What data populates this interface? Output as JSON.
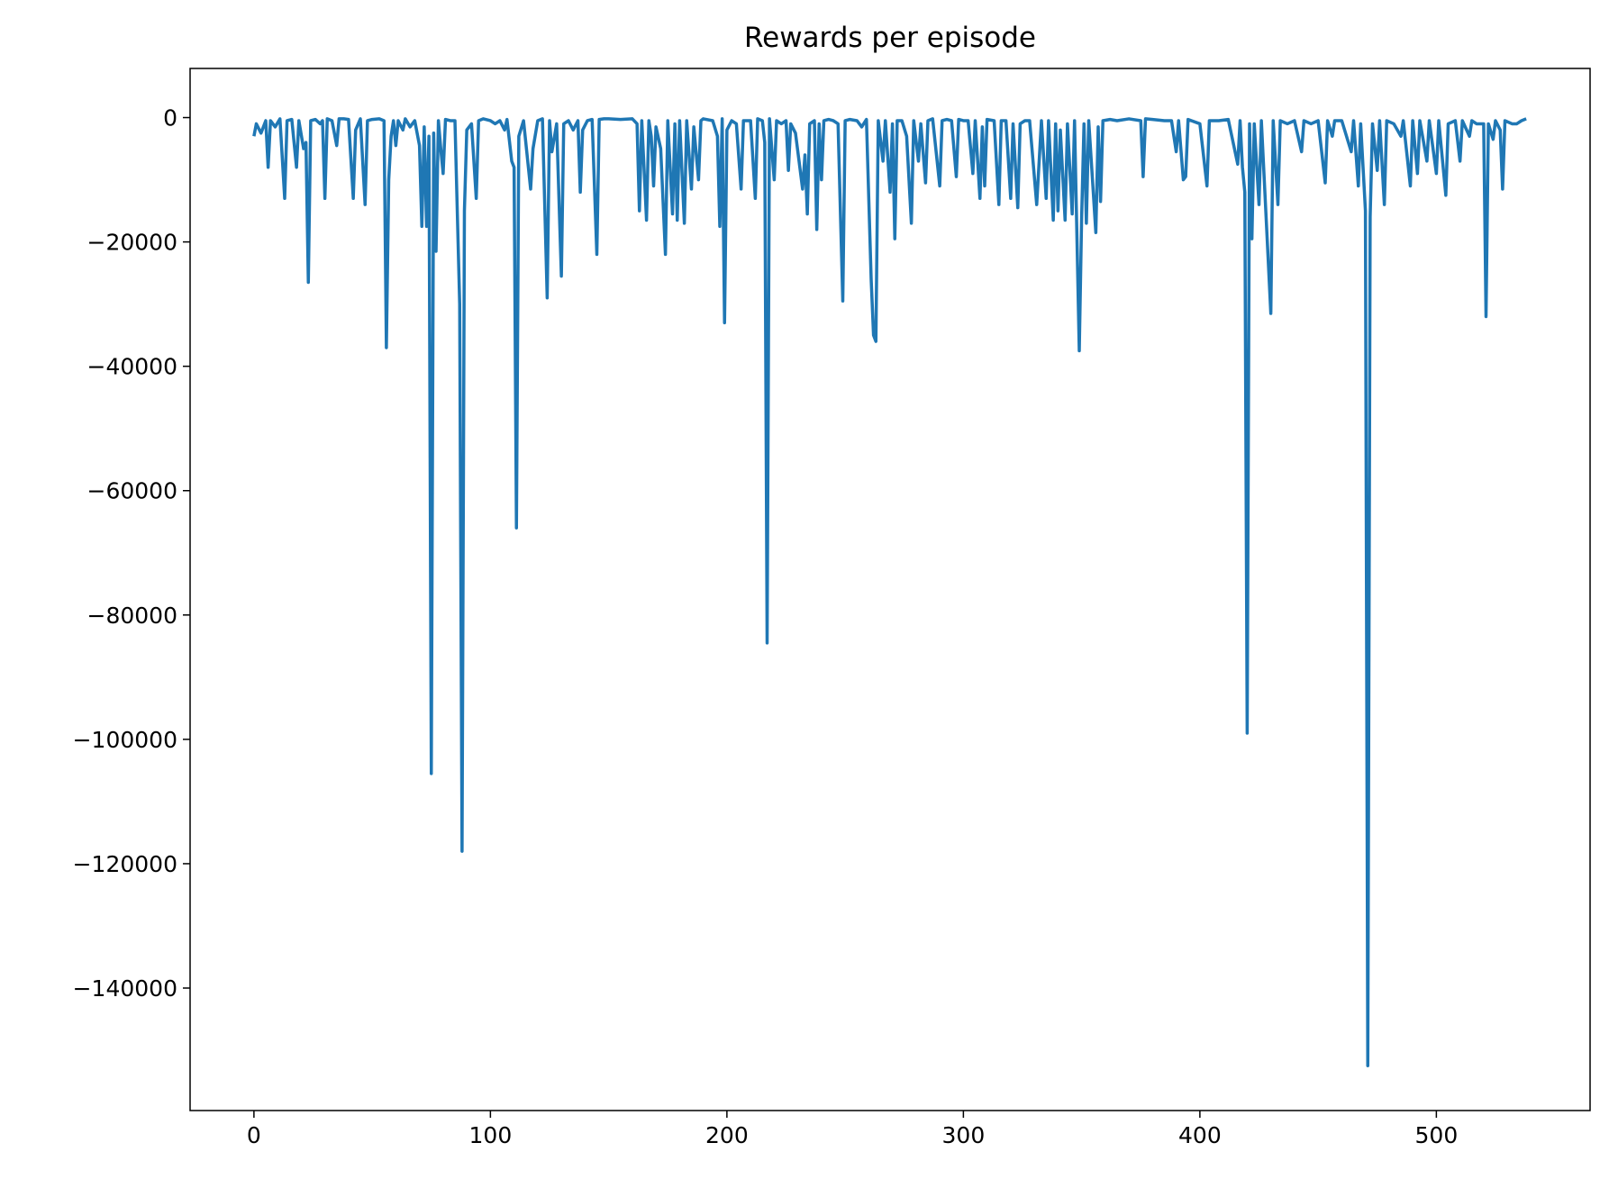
{
  "chart_data": {
    "type": "line",
    "title": "Rewards per episode",
    "xlim": [
      -27,
      565
    ],
    "ylim": [
      -159700,
      7900
    ],
    "xticks": [
      0,
      100,
      200,
      300,
      400,
      500
    ],
    "yticks": [
      0,
      {
        "value": -20000,
        "label": "−20000"
      },
      {
        "value": -40000,
        "label": "−40000"
      },
      {
        "value": -60000,
        "label": "−60000"
      },
      {
        "value": -80000,
        "label": "−80000"
      },
      {
        "value": -100000,
        "label": "−100000"
      },
      {
        "value": -120000,
        "label": "−120000"
      },
      {
        "value": -140000,
        "label": "−140000"
      }
    ],
    "series": [
      {
        "color": "#1f77b4",
        "x": [
          0,
          1,
          3,
          5,
          6,
          7,
          9,
          11,
          13,
          14,
          16,
          18,
          19,
          21,
          22,
          23,
          24,
          26,
          28,
          29,
          30,
          31,
          33,
          35,
          36,
          38,
          40,
          42,
          43,
          45,
          47,
          48,
          50,
          53,
          55,
          56,
          57,
          58,
          59,
          60,
          61,
          63,
          64,
          66,
          68,
          70,
          71,
          72,
          73,
          74,
          75,
          76,
          77,
          78,
          79,
          80,
          81,
          83,
          85,
          87,
          88,
          89,
          90,
          92,
          94,
          95,
          97,
          100,
          102,
          104,
          106,
          107,
          109,
          110,
          111,
          112,
          114,
          117,
          118,
          120,
          122,
          124,
          125,
          126,
          128,
          130,
          131,
          133,
          135,
          137,
          138,
          139,
          141,
          143,
          145,
          146,
          148,
          150,
          155,
          160,
          162,
          163,
          164,
          166,
          167,
          168,
          169,
          170,
          172,
          174,
          175,
          177,
          178,
          179,
          180,
          182,
          183,
          185,
          186,
          188,
          189,
          190,
          194,
          196,
          197,
          198,
          199,
          200,
          202,
          204,
          206,
          207,
          210,
          212,
          213,
          215,
          216,
          217,
          218,
          220,
          221,
          223,
          225,
          226,
          227,
          229,
          230,
          232,
          233,
          234,
          235,
          237,
          238,
          239,
          240,
          241,
          243,
          245,
          247,
          249,
          250,
          252,
          255,
          257,
          259,
          261,
          262,
          263,
          264,
          266,
          267,
          269,
          270,
          271,
          272,
          274,
          276,
          278,
          279,
          281,
          282,
          284,
          285,
          287,
          290,
          291,
          293,
          295,
          297,
          298,
          300,
          302,
          304,
          305,
          307,
          308,
          309,
          310,
          313,
          315,
          316,
          318,
          320,
          321,
          323,
          324,
          326,
          328,
          331,
          333,
          335,
          336,
          338,
          339,
          340,
          341,
          343,
          344,
          346,
          347,
          349,
          350,
          351,
          352,
          353,
          356,
          357,
          358,
          359,
          362,
          365,
          370,
          375,
          376,
          377,
          380,
          385,
          388,
          390,
          391,
          393,
          394,
          395,
          400,
          403,
          404,
          408,
          412,
          416,
          417,
          418,
          419,
          420,
          421,
          422,
          423,
          425,
          426,
          430,
          431,
          433,
          434,
          437,
          440,
          443,
          444,
          447,
          450,
          453,
          454,
          456,
          457,
          460,
          464,
          465,
          467,
          468,
          470,
          471,
          472,
          473,
          475,
          476,
          478,
          479,
          482,
          485,
          486,
          489,
          490,
          492,
          493,
          496,
          497,
          500,
          501,
          504,
          505,
          508,
          510,
          511,
          514,
          515,
          517,
          520,
          521,
          522,
          524,
          525,
          527,
          528,
          529,
          532,
          534,
          536,
          538
        ],
        "values": [
          -3000,
          -1000,
          -2500,
          -500,
          -8000,
          -500,
          -1500,
          -200,
          -13000,
          -500,
          -300,
          -8000,
          -500,
          -5000,
          -4000,
          -26500,
          -500,
          -300,
          -1000,
          -500,
          -13000,
          -200,
          -500,
          -4500,
          -200,
          -200,
          -300,
          -13000,
          -2000,
          -200,
          -14000,
          -500,
          -300,
          -200,
          -500,
          -37000,
          -10000,
          -3000,
          -500,
          -4500,
          -500,
          -2000,
          -200,
          -1500,
          -500,
          -4500,
          -17500,
          -1500,
          -17500,
          -3000,
          -105500,
          -2500,
          -21500,
          -500,
          -5000,
          -9000,
          -300,
          -500,
          -500,
          -30000,
          -118000,
          -15000,
          -2000,
          -1000,
          -13000,
          -500,
          -200,
          -500,
          -1000,
          -500,
          -2000,
          -300,
          -7000,
          -8000,
          -66000,
          -3000,
          -500,
          -11500,
          -5000,
          -500,
          -200,
          -29000,
          -500,
          -5500,
          -1000,
          -25500,
          -1000,
          -500,
          -2000,
          -500,
          -12000,
          -2000,
          -500,
          -300,
          -22000,
          -300,
          -200,
          -200,
          -300,
          -200,
          -1000,
          -15000,
          -500,
          -16500,
          -500,
          -3000,
          -11000,
          -1500,
          -5000,
          -22000,
          -500,
          -15500,
          -1000,
          -16500,
          -500,
          -17000,
          -500,
          -11500,
          -1500,
          -10000,
          -500,
          -200,
          -500,
          -3000,
          -17500,
          -200,
          -33000,
          -2000,
          -500,
          -1000,
          -11500,
          -500,
          -500,
          -13000,
          -200,
          -500,
          -4000,
          -84500,
          -200,
          -10000,
          -500,
          -1000,
          -500,
          -8500,
          -1000,
          -2500,
          -5500,
          -11500,
          -6000,
          -15500,
          -1000,
          -500,
          -18000,
          -1000,
          -10000,
          -500,
          -300,
          -500,
          -1000,
          -29500,
          -500,
          -300,
          -500,
          -1500,
          -300,
          -26000,
          -35000,
          -36000,
          -500,
          -7000,
          -500,
          -12000,
          -1000,
          -19500,
          -500,
          -500,
          -3000,
          -17000,
          -500,
          -7000,
          -1000,
          -10500,
          -500,
          -200,
          -11000,
          -500,
          -300,
          -500,
          -9500,
          -300,
          -500,
          -500,
          -9000,
          -500,
          -13000,
          -1500,
          -11000,
          -300,
          -500,
          -14000,
          -500,
          -500,
          -13000,
          -1000,
          -14500,
          -1000,
          -500,
          -500,
          -14000,
          -500,
          -13000,
          -500,
          -16500,
          -1000,
          -15000,
          -2000,
          -16500,
          -1000,
          -15500,
          -500,
          -37500,
          -16000,
          -1000,
          -17000,
          -500,
          -18500,
          -1500,
          -13500,
          -500,
          -300,
          -500,
          -200,
          -500,
          -9500,
          -200,
          -300,
          -500,
          -500,
          -5500,
          -500,
          -10000,
          -9500,
          -300,
          -1000,
          -11000,
          -500,
          -500,
          -300,
          -7500,
          -500,
          -8000,
          -12000,
          -99000,
          -1000,
          -19500,
          -1000,
          -14000,
          -500,
          -31500,
          -500,
          -14000,
          -500,
          -1000,
          -500,
          -5500,
          -500,
          -1000,
          -500,
          -10500,
          -500,
          -3000,
          -500,
          -500,
          -5500,
          -500,
          -11000,
          -1000,
          -15000,
          -152500,
          -16000,
          -1000,
          -8500,
          -500,
          -14000,
          -500,
          -1000,
          -3000,
          -500,
          -11000,
          -500,
          -9000,
          -500,
          -7000,
          -500,
          -9000,
          -500,
          -12500,
          -1000,
          -500,
          -7000,
          -500,
          -3000,
          -500,
          -1000,
          -1000,
          -32000,
          -1000,
          -3500,
          -500,
          -2000,
          -11500,
          -500,
          -1000,
          -1000,
          -500,
          -200
        ]
      }
    ]
  }
}
